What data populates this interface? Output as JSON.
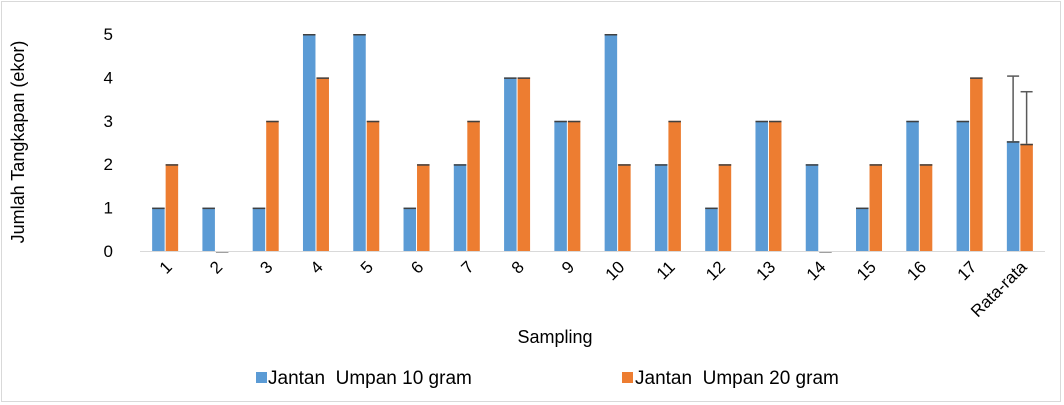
{
  "chart_data": {
    "type": "bar",
    "title": "",
    "xlabel": "Sampling",
    "ylabel": "Jumlah Tangkapan (ekor)",
    "ylim": [
      0,
      5
    ],
    "yticks": [
      0,
      1,
      2,
      3,
      4,
      5
    ],
    "grid": false,
    "legend_position": "bottom",
    "categories": [
      "1",
      "2",
      "3",
      "4",
      "5",
      "6",
      "7",
      "8",
      "9",
      "10",
      "11",
      "12",
      "13",
      "14",
      "15",
      "16",
      "17",
      "Rata-rata"
    ],
    "series": [
      {
        "name": "Jantan  Umpan 10 gram",
        "color": "#5b9bd5",
        "values": [
          1,
          1,
          1,
          5,
          5,
          1,
          2,
          4,
          3,
          5,
          2,
          1,
          3,
          2,
          1,
          3,
          3,
          2.53
        ],
        "error": {
          "category": "Rata-rata",
          "plus": 1.5
        }
      },
      {
        "name": "Jantan  Umpan 20 gram",
        "color": "#ed7d31",
        "values": [
          2,
          0,
          3,
          4,
          3,
          2,
          3,
          4,
          3,
          2,
          3,
          2,
          3,
          0,
          2,
          2,
          4,
          2.47
        ],
        "error": {
          "category": "Rata-rata",
          "plus": 1.2
        }
      }
    ]
  }
}
